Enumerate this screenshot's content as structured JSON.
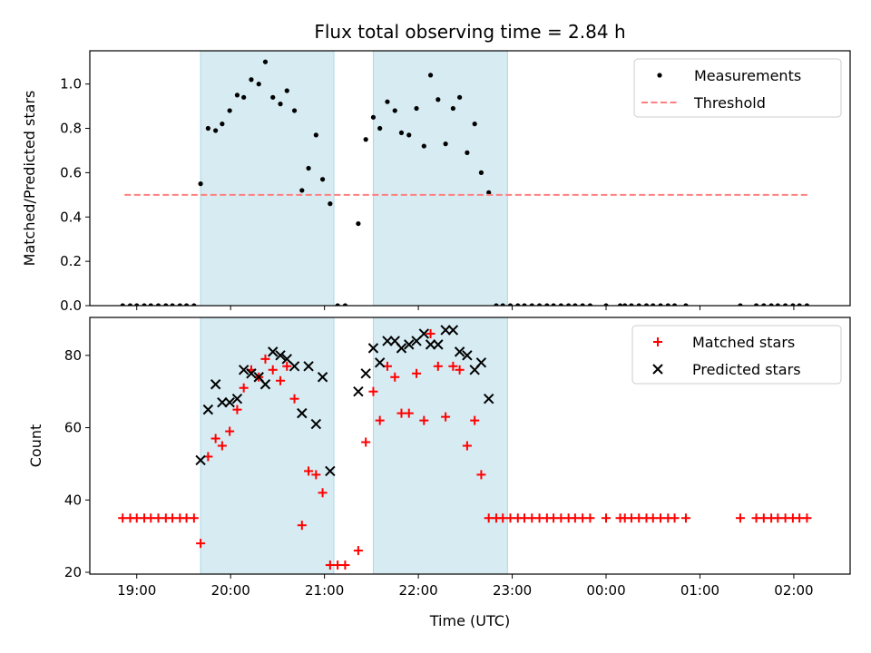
{
  "figure": {
    "title": "Flux total observing time = 2.84 h",
    "xlabel": "Time (UTC)"
  },
  "chart_data": [
    {
      "type": "scatter",
      "panel": "top",
      "ylabel": "Matched/Predicted stars",
      "xlim": [
        18.5,
        26.6
      ],
      "ylim": [
        0.0,
        1.15
      ],
      "x_unit": "hours UTC (values >= 24 fall on the next day)",
      "xticks": [
        {
          "value": 19,
          "label": "19:00"
        },
        {
          "value": 20,
          "label": "20:00"
        },
        {
          "value": 21,
          "label": "21:00"
        },
        {
          "value": 22,
          "label": "22:00"
        },
        {
          "value": 23,
          "label": "23:00"
        },
        {
          "value": 24,
          "label": "00:00"
        },
        {
          "value": 25,
          "label": "01:00"
        },
        {
          "value": 26,
          "label": "02:00"
        }
      ],
      "yticks": [
        {
          "value": 0.0,
          "label": "0.0"
        },
        {
          "value": 0.2,
          "label": "0.2"
        },
        {
          "value": 0.4,
          "label": "0.4"
        },
        {
          "value": 0.6,
          "label": "0.6"
        },
        {
          "value": 0.8,
          "label": "0.8"
        },
        {
          "value": 1.0,
          "label": "1.0"
        }
      ],
      "shaded_intervals": [
        [
          19.68,
          21.1
        ],
        [
          21.52,
          22.95
        ]
      ],
      "shade_color": "#add8e6",
      "series": [
        {
          "name": "Measurements",
          "marker": "dot",
          "color": "#000000",
          "points": [
            [
              18.85,
              0
            ],
            [
              18.93,
              0
            ],
            [
              19.0,
              0
            ],
            [
              19.08,
              0
            ],
            [
              19.15,
              0
            ],
            [
              19.23,
              0
            ],
            [
              19.31,
              0
            ],
            [
              19.38,
              0
            ],
            [
              19.46,
              0
            ],
            [
              19.53,
              0
            ],
            [
              19.61,
              0
            ],
            [
              19.68,
              0.55
            ],
            [
              19.76,
              0.8
            ],
            [
              19.84,
              0.79
            ],
            [
              19.91,
              0.82
            ],
            [
              19.99,
              0.88
            ],
            [
              20.07,
              0.95
            ],
            [
              20.14,
              0.94
            ],
            [
              20.22,
              1.02
            ],
            [
              20.3,
              1.0
            ],
            [
              20.37,
              1.1
            ],
            [
              20.45,
              0.94
            ],
            [
              20.53,
              0.91
            ],
            [
              20.6,
              0.97
            ],
            [
              20.68,
              0.88
            ],
            [
              20.76,
              0.52
            ],
            [
              20.83,
              0.62
            ],
            [
              20.91,
              0.77
            ],
            [
              20.98,
              0.57
            ],
            [
              21.06,
              0.46
            ],
            [
              21.14,
              0
            ],
            [
              21.22,
              0
            ],
            [
              21.36,
              0.37
            ],
            [
              21.44,
              0.75
            ],
            [
              21.52,
              0.85
            ],
            [
              21.59,
              0.8
            ],
            [
              21.67,
              0.92
            ],
            [
              21.75,
              0.88
            ],
            [
              21.82,
              0.78
            ],
            [
              21.9,
              0.77
            ],
            [
              21.98,
              0.89
            ],
            [
              22.06,
              0.72
            ],
            [
              22.13,
              1.04
            ],
            [
              22.21,
              0.93
            ],
            [
              22.29,
              0.73
            ],
            [
              22.37,
              0.89
            ],
            [
              22.44,
              0.94
            ],
            [
              22.52,
              0.69
            ],
            [
              22.6,
              0.82
            ],
            [
              22.67,
              0.6
            ],
            [
              22.75,
              0.51
            ],
            [
              22.83,
              0
            ],
            [
              22.9,
              0
            ],
            [
              22.98,
              0
            ],
            [
              23.06,
              0
            ],
            [
              23.13,
              0
            ],
            [
              23.21,
              0
            ],
            [
              23.29,
              0
            ],
            [
              23.37,
              0
            ],
            [
              23.44,
              0
            ],
            [
              23.52,
              0
            ],
            [
              23.6,
              0
            ],
            [
              23.67,
              0
            ],
            [
              23.75,
              0
            ],
            [
              23.83,
              0
            ],
            [
              24.0,
              0
            ],
            [
              24.15,
              0
            ],
            [
              24.2,
              0
            ],
            [
              24.27,
              0
            ],
            [
              24.35,
              0
            ],
            [
              24.43,
              0
            ],
            [
              24.5,
              0
            ],
            [
              24.58,
              0
            ],
            [
              24.66,
              0
            ],
            [
              24.73,
              0
            ],
            [
              24.85,
              0
            ],
            [
              25.43,
              0
            ],
            [
              25.6,
              0
            ],
            [
              25.68,
              0
            ],
            [
              25.76,
              0
            ],
            [
              25.83,
              0
            ],
            [
              25.91,
              0
            ],
            [
              25.99,
              0
            ],
            [
              26.06,
              0
            ],
            [
              26.14,
              0
            ]
          ]
        },
        {
          "name": "Threshold",
          "marker": "dashed-line",
          "color": "#ff7f7f",
          "points": [
            [
              18.87,
              0.5
            ],
            [
              26.16,
              0.5
            ]
          ]
        }
      ],
      "legend": {
        "position": "top-right"
      }
    },
    {
      "type": "scatter",
      "panel": "bottom",
      "ylabel": "Count",
      "xlim": [
        18.5,
        26.6
      ],
      "ylim": [
        19.5,
        90.5
      ],
      "x_unit": "hours UTC (values >= 24 fall on the next day)",
      "xticks": [
        {
          "value": 19,
          "label": "19:00"
        },
        {
          "value": 20,
          "label": "20:00"
        },
        {
          "value": 21,
          "label": "21:00"
        },
        {
          "value": 22,
          "label": "22:00"
        },
        {
          "value": 23,
          "label": "23:00"
        },
        {
          "value": 24,
          "label": "00:00"
        },
        {
          "value": 25,
          "label": "01:00"
        },
        {
          "value": 26,
          "label": "02:00"
        }
      ],
      "yticks": [
        {
          "value": 20,
          "label": "20"
        },
        {
          "value": 40,
          "label": "40"
        },
        {
          "value": 60,
          "label": "60"
        },
        {
          "value": 80,
          "label": "80"
        }
      ],
      "shaded_intervals": [
        [
          19.68,
          21.1
        ],
        [
          21.52,
          22.95
        ]
      ],
      "shade_color": "#add8e6",
      "series": [
        {
          "name": "Matched stars",
          "marker": "plus",
          "color": "#ff0000",
          "points": [
            [
              18.85,
              35
            ],
            [
              18.93,
              35
            ],
            [
              19.0,
              35
            ],
            [
              19.08,
              35
            ],
            [
              19.15,
              35
            ],
            [
              19.23,
              35
            ],
            [
              19.31,
              35
            ],
            [
              19.38,
              35
            ],
            [
              19.46,
              35
            ],
            [
              19.53,
              35
            ],
            [
              19.61,
              35
            ],
            [
              19.68,
              28
            ],
            [
              19.76,
              52
            ],
            [
              19.84,
              57
            ],
            [
              19.91,
              55
            ],
            [
              19.99,
              59
            ],
            [
              20.07,
              65
            ],
            [
              20.14,
              71
            ],
            [
              20.22,
              76
            ],
            [
              20.3,
              74
            ],
            [
              20.37,
              79
            ],
            [
              20.45,
              76
            ],
            [
              20.53,
              73
            ],
            [
              20.6,
              77
            ],
            [
              20.68,
              68
            ],
            [
              20.76,
              33
            ],
            [
              20.83,
              48
            ],
            [
              20.91,
              47
            ],
            [
              20.98,
              42
            ],
            [
              21.06,
              22
            ],
            [
              21.14,
              22
            ],
            [
              21.22,
              22
            ],
            [
              21.36,
              26
            ],
            [
              21.44,
              56
            ],
            [
              21.52,
              70
            ],
            [
              21.59,
              62
            ],
            [
              21.67,
              77
            ],
            [
              21.75,
              74
            ],
            [
              21.82,
              64
            ],
            [
              21.9,
              64
            ],
            [
              21.98,
              75
            ],
            [
              22.06,
              62
            ],
            [
              22.13,
              86
            ],
            [
              22.21,
              77
            ],
            [
              22.29,
              63
            ],
            [
              22.37,
              77
            ],
            [
              22.44,
              76
            ],
            [
              22.52,
              55
            ],
            [
              22.6,
              62
            ],
            [
              22.67,
              47
            ],
            [
              22.75,
              35
            ],
            [
              22.83,
              35
            ],
            [
              22.9,
              35
            ],
            [
              22.98,
              35
            ],
            [
              23.06,
              35
            ],
            [
              23.13,
              35
            ],
            [
              23.21,
              35
            ],
            [
              23.29,
              35
            ],
            [
              23.37,
              35
            ],
            [
              23.44,
              35
            ],
            [
              23.52,
              35
            ],
            [
              23.6,
              35
            ],
            [
              23.67,
              35
            ],
            [
              23.75,
              35
            ],
            [
              23.83,
              35
            ],
            [
              24.0,
              35
            ],
            [
              24.15,
              35
            ],
            [
              24.2,
              35
            ],
            [
              24.27,
              35
            ],
            [
              24.35,
              35
            ],
            [
              24.43,
              35
            ],
            [
              24.5,
              35
            ],
            [
              24.58,
              35
            ],
            [
              24.66,
              35
            ],
            [
              24.73,
              35
            ],
            [
              24.85,
              35
            ],
            [
              25.43,
              35
            ],
            [
              25.6,
              35
            ],
            [
              25.68,
              35
            ],
            [
              25.76,
              35
            ],
            [
              25.83,
              35
            ],
            [
              25.91,
              35
            ],
            [
              25.99,
              35
            ],
            [
              26.06,
              35
            ],
            [
              26.14,
              35
            ]
          ]
        },
        {
          "name": "Predicted stars",
          "marker": "x",
          "color": "#000000",
          "points": [
            [
              19.68,
              51
            ],
            [
              19.76,
              65
            ],
            [
              19.84,
              72
            ],
            [
              19.91,
              67
            ],
            [
              19.99,
              67
            ],
            [
              20.07,
              68
            ],
            [
              20.14,
              76
            ],
            [
              20.22,
              75
            ],
            [
              20.3,
              74
            ],
            [
              20.37,
              72
            ],
            [
              20.45,
              81
            ],
            [
              20.53,
              80
            ],
            [
              20.6,
              79
            ],
            [
              20.68,
              77
            ],
            [
              20.76,
              64
            ],
            [
              20.83,
              77
            ],
            [
              20.91,
              61
            ],
            [
              20.98,
              74
            ],
            [
              21.06,
              48
            ],
            [
              21.36,
              70
            ],
            [
              21.44,
              75
            ],
            [
              21.52,
              82
            ],
            [
              21.59,
              78
            ],
            [
              21.67,
              84
            ],
            [
              21.75,
              84
            ],
            [
              21.82,
              82
            ],
            [
              21.9,
              83
            ],
            [
              21.98,
              84
            ],
            [
              22.06,
              86
            ],
            [
              22.13,
              83
            ],
            [
              22.21,
              83
            ],
            [
              22.29,
              87
            ],
            [
              22.37,
              87
            ],
            [
              22.44,
              81
            ],
            [
              22.52,
              80
            ],
            [
              22.6,
              76
            ],
            [
              22.67,
              78
            ],
            [
              22.75,
              68
            ]
          ]
        }
      ],
      "legend": {
        "position": "top-right"
      }
    }
  ]
}
